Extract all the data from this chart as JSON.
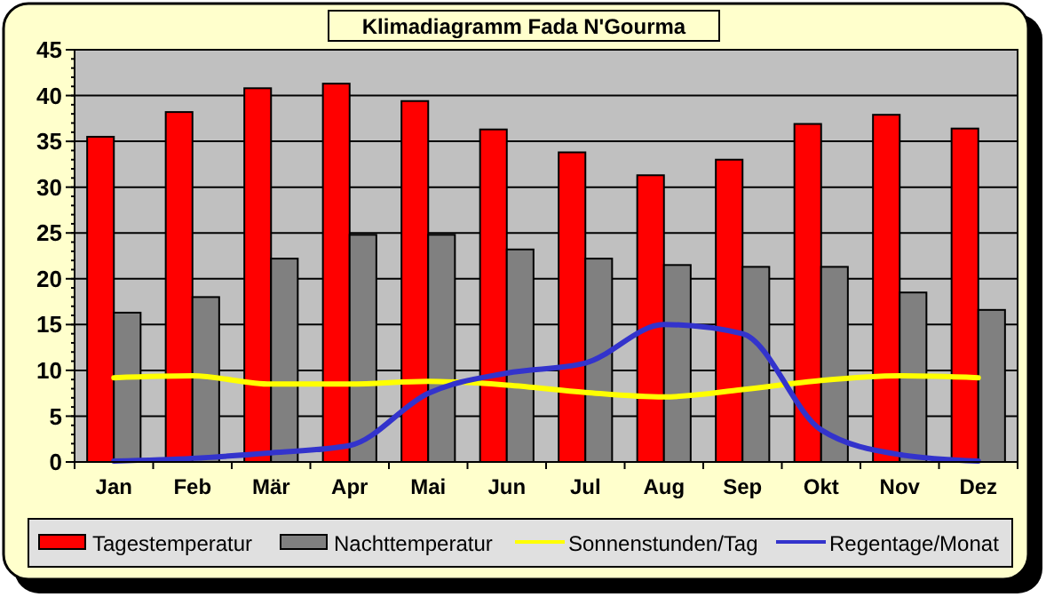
{
  "chart_data": {
    "type": "bar",
    "title": "Klimadiagramm Fada N'Gourma",
    "categories": [
      "Jan",
      "Feb",
      "Mär",
      "Apr",
      "Mai",
      "Jun",
      "Jul",
      "Aug",
      "Sep",
      "Okt",
      "Nov",
      "Dez"
    ],
    "series": [
      {
        "name": "Tagestemperatur",
        "color": "#ff0000",
        "values": [
          35.5,
          38.2,
          40.8,
          41.3,
          39.4,
          36.3,
          33.8,
          31.3,
          33.0,
          36.9,
          37.9,
          36.4
        ]
      },
      {
        "name": "Nachttemperatur",
        "color": "#808080",
        "values": [
          16.3,
          18.0,
          22.2,
          24.8,
          24.8,
          23.2,
          22.2,
          21.5,
          21.3,
          21.3,
          18.5,
          16.6
        ]
      },
      {
        "name": "Sonnenstunden/Tag",
        "type": "line",
        "color": "#ffff00",
        "values": [
          9.2,
          9.4,
          8.5,
          8.5,
          8.8,
          8.4,
          7.6,
          7.1,
          7.9,
          8.9,
          9.4,
          9.2
        ]
      },
      {
        "name": "Regentage/Monat",
        "type": "line",
        "color": "#3333cc",
        "values": [
          0.1,
          0.4,
          1.0,
          1.8,
          7.5,
          9.7,
          10.8,
          15.0,
          14.0,
          3.5,
          0.8,
          0.1
        ]
      }
    ],
    "ylim": [
      0,
      45
    ],
    "yticks": [
      0,
      5,
      10,
      15,
      20,
      25,
      30,
      35,
      40,
      45
    ],
    "grid": "y",
    "legend": "bottom",
    "marker": "none"
  }
}
